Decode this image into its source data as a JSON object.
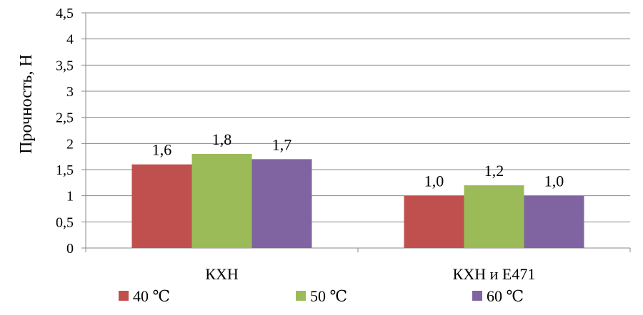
{
  "chart_data": {
    "type": "bar",
    "ylabel": "Прочность, Н",
    "ylim": [
      0,
      4.5
    ],
    "yticks": [
      "0",
      "0,5",
      "1",
      "1,5",
      "2",
      "2,5",
      "3",
      "3,5",
      "4",
      "4,5"
    ],
    "grid": true,
    "legend_position": "bottom",
    "categories": [
      "КХН",
      "КХН и  Е471"
    ],
    "series": [
      {
        "name": "40  ℃",
        "color": "#c0504d",
        "values": [
          1.6,
          1.0
        ],
        "labels": [
          "1,6",
          "1,0"
        ]
      },
      {
        "name": "50  ℃",
        "color": "#9bbb59",
        "values": [
          1.8,
          1.2
        ],
        "labels": [
          "1,8",
          "1,2"
        ]
      },
      {
        "name": "60  ℃",
        "color": "#8064a2",
        "values": [
          1.7,
          1.0
        ],
        "labels": [
          "1,7",
          "1,0"
        ]
      }
    ]
  }
}
